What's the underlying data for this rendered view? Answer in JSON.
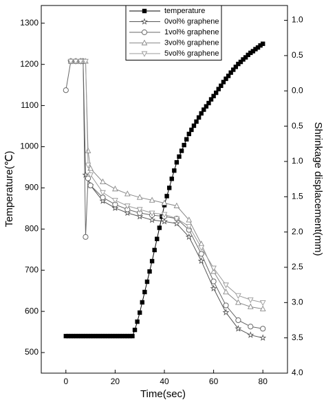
{
  "chart_data": {
    "type": "line",
    "xlabel": "Time(sec)",
    "ylabel": "Temperature(℃)",
    "y2label": "Shrinkage displacement(mm)",
    "xlim": [
      -10,
      90
    ],
    "xticks": [
      0,
      20,
      40,
      60,
      80
    ],
    "ylim": [
      450,
      1343
    ],
    "yticks": [
      500,
      600,
      700,
      800,
      900,
      1000,
      1100,
      1200,
      1300
    ],
    "y2lim": [
      4.0,
      -1.21
    ],
    "y2ticks": [
      {
        "value": -1.0,
        "label": "1.0"
      },
      {
        "value": -0.5,
        "label": "0.5"
      },
      {
        "value": 0,
        "label": "0.0"
      },
      0.5,
      {
        "value": 1.0,
        "label": "1.0"
      },
      1.5,
      {
        "value": 2.0,
        "label": "2.0"
      },
      2.5,
      {
        "value": 3.0,
        "label": "3.0"
      },
      3.5,
      {
        "value": 4.0,
        "label": "4.0"
      }
    ],
    "legend": "top",
    "series": [
      {
        "name": "temperature",
        "color": "#000000",
        "marker": "square",
        "x": [
          0,
          1,
          2,
          3,
          4,
          5,
          6,
          7,
          8,
          9,
          10,
          11,
          12,
          13,
          14,
          15,
          16,
          17,
          18,
          19,
          20,
          21,
          22,
          23,
          24,
          25,
          26,
          27,
          28,
          29,
          30,
          31,
          32,
          33,
          34,
          35,
          36,
          37,
          38,
          39,
          40,
          41,
          42,
          43,
          44,
          45,
          46,
          47,
          48,
          49,
          50,
          51,
          52,
          53,
          54,
          55,
          56,
          57,
          58,
          59,
          60,
          61,
          62,
          63,
          64,
          65,
          66,
          67,
          68,
          69,
          70,
          71,
          72,
          73,
          74,
          75,
          76,
          77,
          78,
          79,
          80
        ],
        "values": [
          540,
          540,
          540,
          540,
          540,
          540,
          540,
          540,
          540,
          540,
          540,
          540,
          540,
          540,
          540,
          540,
          540,
          540,
          540,
          540,
          540,
          540,
          540,
          540,
          540,
          540,
          540,
          540,
          555,
          575,
          597,
          622,
          647,
          672,
          697,
          722,
          749,
          776,
          803,
          830,
          858,
          880,
          900,
          922,
          942,
          962,
          976,
          990,
          1004,
          1018,
          1031,
          1041,
          1051,
          1061,
          1071,
          1081,
          1090,
          1098,
          1106,
          1115,
          1123,
          1131,
          1140,
          1148,
          1157,
          1165,
          1172,
          1180,
          1187,
          1194,
          1201,
          1206,
          1212,
          1217,
          1223,
          1228,
          1232,
          1237,
          1241,
          1246,
          1250
        ]
      },
      {
        "name": "0vol% graphene",
        "color": "#555555",
        "marker": "star",
        "axis": "y2",
        "x": [
          2,
          4,
          6,
          7,
          8,
          10,
          15,
          20,
          25,
          30,
          35,
          40,
          45,
          50,
          55,
          60,
          65,
          70,
          75,
          80
        ],
        "values": [
          -0.42,
          -0.42,
          -0.42,
          -0.42,
          1.19,
          1.34,
          1.56,
          1.66,
          1.73,
          1.78,
          1.83,
          1.85,
          1.88,
          2.07,
          2.41,
          2.8,
          3.14,
          3.37,
          3.46,
          3.5
        ]
      },
      {
        "name": "1vol% graphene",
        "color": "#666666",
        "marker": "circle",
        "axis": "y2",
        "x": [
          0,
          2,
          4,
          6,
          7,
          8,
          9,
          10,
          15,
          20,
          25,
          30,
          35,
          40,
          45,
          50,
          55,
          60,
          65,
          70,
          75,
          80
        ],
        "values": [
          -0.01,
          -0.42,
          -0.42,
          -0.42,
          -0.42,
          2.07,
          1.24,
          1.34,
          1.51,
          1.61,
          1.68,
          1.73,
          1.76,
          1.78,
          1.81,
          1.97,
          2.31,
          2.7,
          3.04,
          3.25,
          3.34,
          3.37
        ]
      },
      {
        "name": "3vol% graphene",
        "color": "#888888",
        "marker": "triangle-up",
        "axis": "y2",
        "x": [
          2,
          4,
          6,
          8,
          9,
          10,
          15,
          20,
          25,
          30,
          35,
          40,
          45,
          50,
          55,
          60,
          65,
          70,
          75,
          80
        ],
        "values": [
          -0.42,
          -0.42,
          -0.42,
          -0.42,
          0.85,
          1.1,
          1.29,
          1.39,
          1.46,
          1.51,
          1.55,
          1.59,
          1.63,
          1.83,
          2.17,
          2.56,
          2.85,
          3.0,
          3.06,
          3.09
        ]
      },
      {
        "name": "5vol% graphene",
        "color": "#999999",
        "marker": "triangle-down",
        "axis": "y2",
        "x": [
          2,
          4,
          6,
          8,
          9,
          10,
          15,
          20,
          25,
          30,
          35,
          40,
          45,
          50,
          55,
          60,
          65,
          70,
          75,
          80
        ],
        "values": [
          -0.42,
          -0.42,
          -0.42,
          -0.42,
          1.05,
          1.19,
          1.44,
          1.55,
          1.63,
          1.68,
          1.73,
          1.75,
          1.81,
          1.92,
          2.22,
          2.51,
          2.75,
          2.9,
          2.96,
          3.0
        ]
      }
    ]
  }
}
